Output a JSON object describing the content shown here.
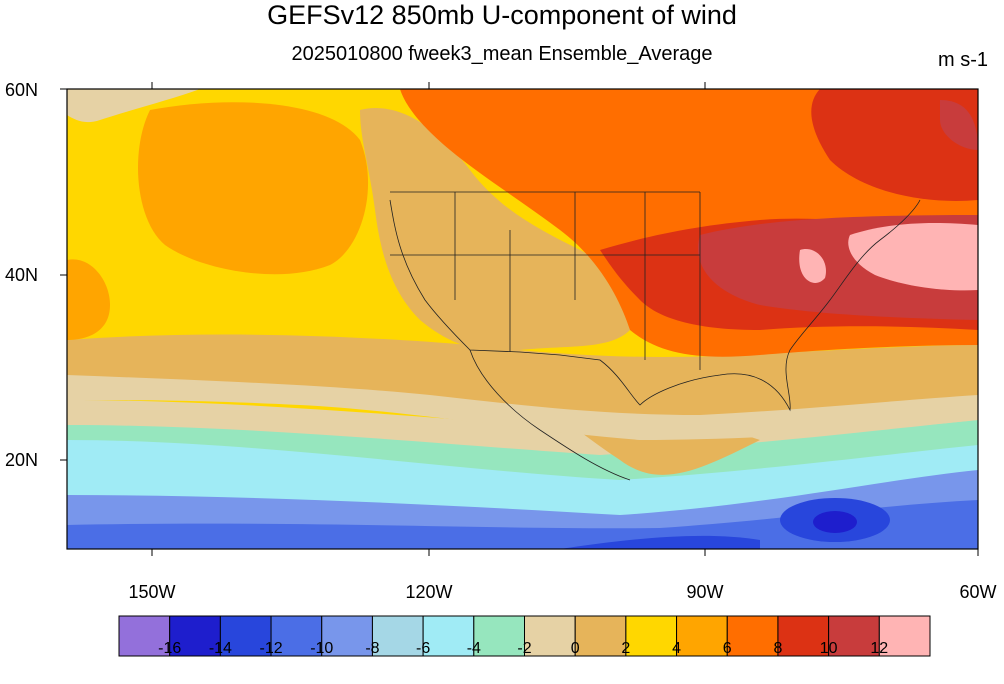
{
  "title": "GEFSv12 850mb U-component of wind",
  "subtitle": "2025010800 fweek3_mean Ensemble_Average",
  "units": "m s-1",
  "map": {
    "lat_range": [
      10,
      60
    ],
    "lon_range": [
      -160,
      -60
    ],
    "lat_ticks": [
      "60N",
      "40N",
      "20N"
    ],
    "lon_ticks": [
      "150W",
      "120W",
      "90W",
      "60W"
    ]
  },
  "colorbar": {
    "colors": [
      "#9370DB",
      "#1E1ECD",
      "#2846DC",
      "#4B6EE6",
      "#7896EB",
      "#A5D7E6",
      "#A0EBF5",
      "#96E6BE",
      "#E6D2A5",
      "#E6B45A",
      "#FFD700",
      "#FFA500",
      "#FF6E00",
      "#DC3214",
      "#C83C3C",
      "#FFB4B4"
    ],
    "labels": [
      "-16",
      "-14",
      "-12",
      "-10",
      "-8",
      "-6",
      "-4",
      "-2",
      "0",
      "2",
      "4",
      "6",
      "8",
      "10",
      "12"
    ]
  }
}
